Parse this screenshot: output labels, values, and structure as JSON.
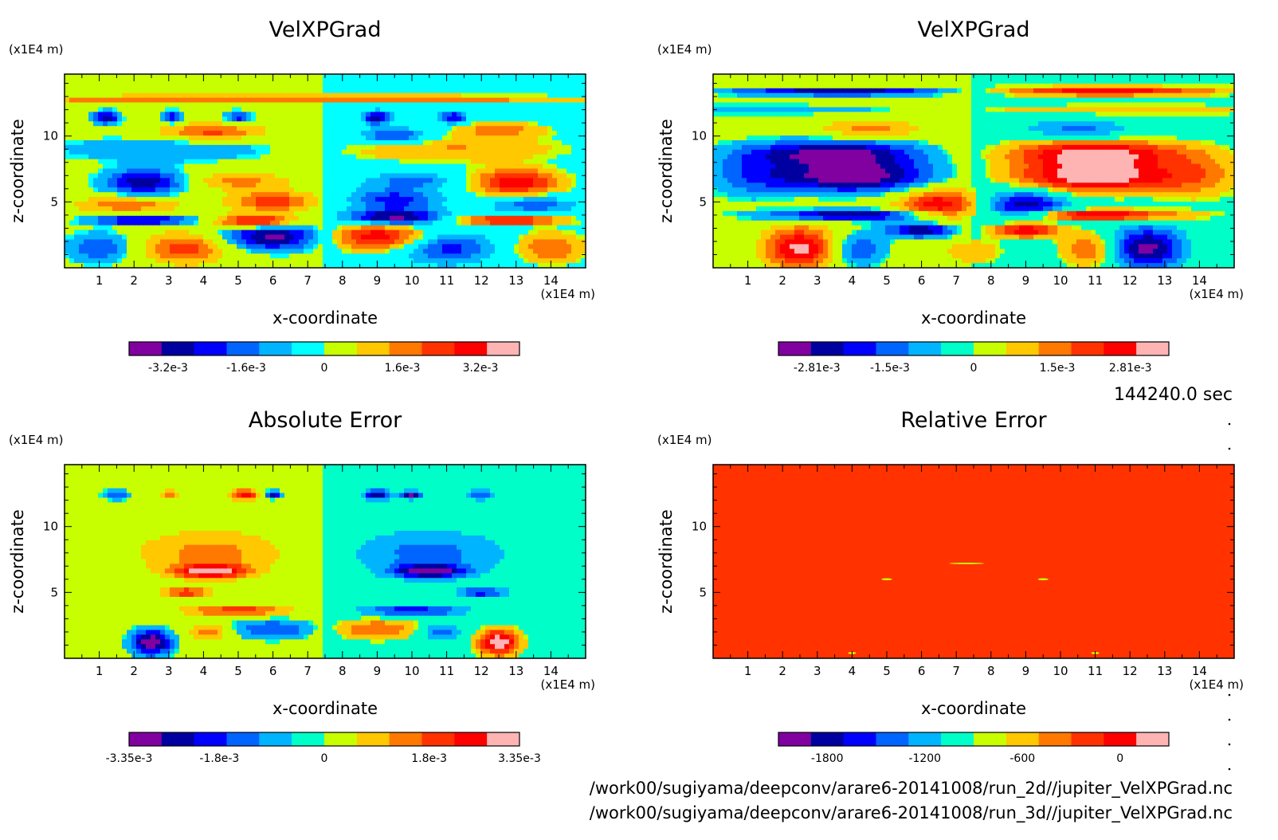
{
  "chart_data": [
    {
      "type": "heatmap",
      "title": "VelXPGrad",
      "xlabel": "x-coordinate",
      "ylabel": "z-coordinate",
      "x_unit": "(x1E4 m)",
      "y_unit": "(x1E4 m)",
      "xlim": [
        0,
        15
      ],
      "ylim": [
        0,
        14.7
      ],
      "xticks": [
        "1",
        "2",
        "3",
        "4",
        "5",
        "6",
        "7",
        "8",
        "9",
        "10",
        "11",
        "12",
        "13",
        "14"
      ],
      "yticks": [
        "5",
        "10"
      ],
      "colorbar": {
        "colors": [
          "#8000a0",
          "#0000a0",
          "#0000ff",
          "#0064ff",
          "#00b4ff",
          "#00ffff",
          "#c8ff00",
          "#ffc800",
          "#ff7800",
          "#ff3200",
          "#ff0000",
          "#ffb4b4"
        ],
        "tick_labels": [
          "-3.2e-3",
          "-1.6e-3",
          "0",
          "1.6e-3",
          "3.2e-3"
        ],
        "tick_values": [
          -0.0032,
          -0.0016,
          0,
          0.0016,
          0.0032
        ],
        "range": [
          -0.004,
          0.004
        ]
      }
    },
    {
      "type": "heatmap",
      "title": "VelXPGrad",
      "xlabel": "x-coordinate",
      "ylabel": "z-coordinate",
      "x_unit": "(x1E4 m)",
      "y_unit": "(x1E4 m)",
      "xlim": [
        0,
        15
      ],
      "ylim": [
        0,
        14.7
      ],
      "xticks": [
        "1",
        "2",
        "3",
        "4",
        "5",
        "6",
        "7",
        "8",
        "9",
        "10",
        "11",
        "12",
        "13",
        "14"
      ],
      "yticks": [
        "5",
        "10"
      ],
      "colorbar": {
        "colors": [
          "#8000a0",
          "#0000a0",
          "#0000ff",
          "#0064ff",
          "#00b4ff",
          "#00ffc8",
          "#c8ff00",
          "#ffc800",
          "#ff7800",
          "#ff3200",
          "#ff0000",
          "#ffb4b4"
        ],
        "tick_labels": [
          "-2.81e-3",
          "-1.5e-3",
          "0",
          "1.5e-3",
          "2.81e-3"
        ],
        "tick_values": [
          -0.00281,
          -0.0015,
          0,
          0.0015,
          0.00281
        ],
        "range": [
          -0.0035,
          0.0035
        ]
      }
    },
    {
      "type": "heatmap",
      "title": "Absolute Error",
      "xlabel": "x-coordinate",
      "ylabel": "z-coordinate",
      "x_unit": "(x1E4 m)",
      "y_unit": "(x1E4 m)",
      "xlim": [
        0,
        15
      ],
      "ylim": [
        0,
        14.7
      ],
      "xticks": [
        "1",
        "2",
        "3",
        "4",
        "5",
        "6",
        "7",
        "8",
        "9",
        "10",
        "11",
        "12",
        "13",
        "14"
      ],
      "yticks": [
        "5",
        "10"
      ],
      "colorbar": {
        "colors": [
          "#8000a0",
          "#0000a0",
          "#0000ff",
          "#0064ff",
          "#00b4ff",
          "#00ffc8",
          "#c8ff00",
          "#ffc800",
          "#ff7800",
          "#ff3200",
          "#ff0000",
          "#ffb4b4"
        ],
        "tick_labels": [
          "-3.35e-3",
          "-1.8e-3",
          "0",
          "1.8e-3",
          "3.35e-3"
        ],
        "tick_values": [
          -0.00335,
          -0.0018,
          0,
          0.0018,
          0.00335
        ],
        "range": [
          -0.00335,
          0.00335
        ]
      }
    },
    {
      "type": "heatmap",
      "title": "Relative Error",
      "xlabel": "x-coordinate",
      "ylabel": "z-coordinate",
      "x_unit": "(x1E4 m)",
      "y_unit": "(x1E4 m)",
      "xlim": [
        0,
        15
      ],
      "ylim": [
        0,
        14.7
      ],
      "xticks": [
        "1",
        "2",
        "3",
        "4",
        "5",
        "6",
        "7",
        "8",
        "9",
        "10",
        "11",
        "12",
        "13",
        "14"
      ],
      "yticks": [
        "5",
        "10"
      ],
      "colorbar": {
        "colors": [
          "#8000a0",
          "#0000a0",
          "#0000ff",
          "#0064ff",
          "#00b4ff",
          "#00ffc8",
          "#c8ff00",
          "#ffc800",
          "#ff7800",
          "#ff3200",
          "#ff0000",
          "#ffb4b4"
        ],
        "tick_labels": [
          "-1800",
          "-1200",
          "-600",
          "0"
        ],
        "tick_values": [
          -1800,
          -1200,
          -600,
          0
        ],
        "range": [
          -2100,
          300
        ]
      }
    }
  ],
  "time_label": "144240.0 sec",
  "file_paths": [
    "/work00/sugiyama/deepconv/arare6-20141008/run_2d//jupiter_VelXPGrad.nc",
    "/work00/sugiyama/deepconv/arare6-20141008/run_3d//jupiter_VelXPGrad.nc"
  ]
}
